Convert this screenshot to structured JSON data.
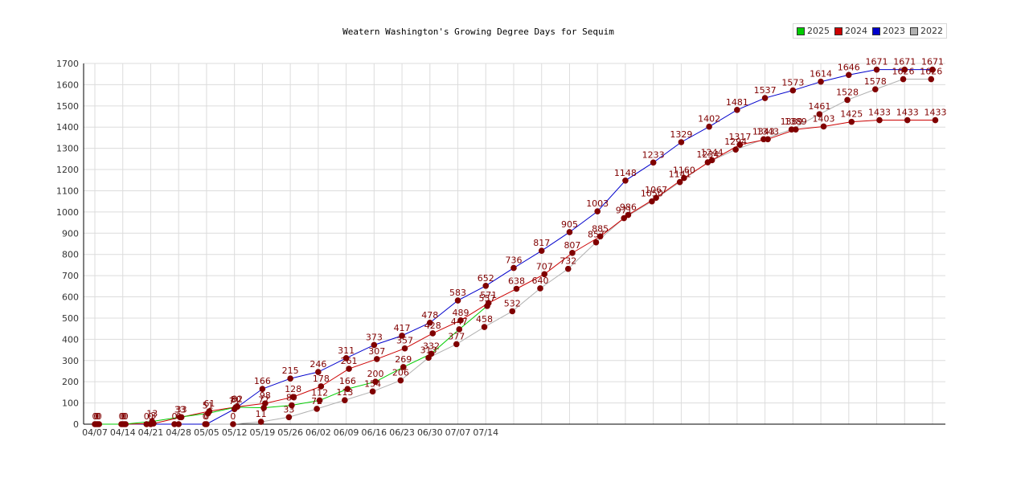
{
  "colors": {
    "2025": "#00cc00",
    "2024": "#cc0000",
    "2023": "#0000cc",
    "2022": "#b0b0b0",
    "marker": "#800000",
    "label": "#800000"
  },
  "chart_data": {
    "type": "line",
    "title": "Weatern Washington's Growing Degree Days for Sequim",
    "xlabel": "",
    "ylabel": "",
    "ylim": [
      0,
      1700
    ],
    "y_ticks": [
      0,
      100,
      200,
      300,
      400,
      500,
      600,
      700,
      800,
      900,
      1000,
      1100,
      1200,
      1300,
      1400,
      1500,
      1600,
      1700
    ],
    "x_tick_labels": [
      "04/07",
      "04/14",
      "04/21",
      "04/28",
      "05/05",
      "05/12",
      "05/19",
      "05/26",
      "06/02",
      "06/09",
      "06/16",
      "06/23",
      "06/30",
      "07/07",
      "07/14"
    ],
    "grid": true,
    "legend_position": "top-right",
    "legend": [
      "2025",
      "2024",
      "2023",
      "2022"
    ],
    "series": [
      {
        "name": "2022",
        "color": "#b0b0b0",
        "x": [
          0.15,
          0.95,
          1.85,
          2.85,
          3.95,
          4.95,
          5.95,
          6.95,
          7.95,
          8.95,
          9.95,
          10.95,
          11.95,
          12.95,
          13.95,
          14.95,
          15.95,
          16.95,
          17.95,
          18.95,
          19.95,
          20.95,
          21.95,
          22.95,
          23.95,
          24.95,
          25.95,
          26.95,
          27.95,
          28.95,
          29.95
        ],
        "y": [
          0,
          0,
          0,
          0,
          0,
          0,
          11,
          33,
          72,
          113,
          154,
          206,
          313,
          377,
          458,
          532,
          640,
          732,
          857,
          971,
          1050,
          1141,
          1234,
          1294,
          1343,
          1389,
          1461,
          1528,
          1578,
          1626,
          1626
        ],
        "labels": [
          "0",
          "0",
          "0",
          "0",
          "0",
          "0",
          "11",
          "33",
          "72",
          "113",
          "154",
          "206",
          "313",
          "377",
          "458",
          "532",
          "640",
          "732",
          "857",
          "971",
          "1050",
          "1141",
          "1234",
          "1294",
          "1343",
          "1389",
          "1461",
          "1528",
          "1578",
          "1626",
          "1626"
        ]
      },
      {
        "name": "2023",
        "color": "#0000cc",
        "x": [
          0,
          1,
          2,
          3,
          4,
          5,
          6,
          7,
          8,
          9,
          10,
          11,
          12,
          13,
          14,
          15,
          16,
          17,
          18,
          19,
          20,
          21,
          22,
          23,
          24,
          25,
          26,
          27,
          28,
          29,
          30
        ],
        "y": [
          0,
          0,
          0,
          0,
          0,
          71,
          166,
          215,
          246,
          311,
          373,
          417,
          478,
          583,
          652,
          736,
          817,
          905,
          1003,
          1148,
          1233,
          1329,
          1402,
          1481,
          1537,
          1573,
          1614,
          1646,
          1671,
          1671,
          1671
        ],
        "labels": [
          "0",
          "0",
          "0",
          "0",
          "0",
          "71",
          "166",
          "215",
          "246",
          "311",
          "373",
          "417",
          "478",
          "583",
          "652",
          "736",
          "817",
          "905",
          "1003",
          "1148",
          "1233",
          "1329",
          "1402",
          "1481",
          "1537",
          "1573",
          "1614",
          "1646",
          "1671",
          "1671",
          "1671"
        ]
      },
      {
        "name": "2024",
        "color": "#cc0000",
        "x": [
          0.1,
          1.1,
          2.1,
          3.1,
          4.1,
          5.1,
          6.1,
          7.1,
          8.1,
          9.1,
          10.1,
          11.1,
          12.1,
          13.1,
          14.1,
          15.1,
          16.1,
          17.1,
          18.1,
          19.1,
          20.1,
          21.1,
          22.1,
          23.1,
          24.1,
          25.1,
          26.1,
          27.1,
          28.1,
          29.1,
          30.1
        ],
        "y": [
          0,
          0,
          3,
          33,
          61,
          82,
          98,
          128,
          178,
          261,
          307,
          357,
          428,
          489,
          571,
          638,
          707,
          807,
          885,
          986,
          1067,
          1160,
          1244,
          1317,
          1343,
          1389,
          1403,
          1425,
          1433,
          1433,
          1433
        ],
        "labels": [
          "0",
          "0",
          "3",
          "33",
          "61",
          "82",
          "98",
          "128",
          "178",
          "261",
          "307",
          "357",
          "428",
          "489",
          "571",
          "638",
          "707",
          "807",
          "885",
          "986",
          "1067",
          "1160",
          "1244",
          "1317",
          "1343",
          "1389",
          "1403",
          "1425",
          "1433",
          "1433",
          "1433"
        ]
      },
      {
        "name": "2025",
        "color": "#00cc00",
        "x": [
          0.05,
          1.05,
          2.05,
          3.05,
          4.05,
          5.05,
          6.05,
          7.05,
          8.05,
          9.05,
          10.05,
          11.05,
          12.05,
          13.05,
          14.05
        ],
        "y": [
          0,
          0,
          13,
          33,
          51,
          80,
          77,
          89,
          112,
          166,
          200,
          269,
          332,
          447,
          557
        ],
        "labels": [
          "0",
          "0",
          "13",
          "33",
          "51",
          "80",
          "77",
          "89",
          "112",
          "166",
          "200",
          "269",
          "332",
          "447",
          "557"
        ]
      }
    ]
  }
}
